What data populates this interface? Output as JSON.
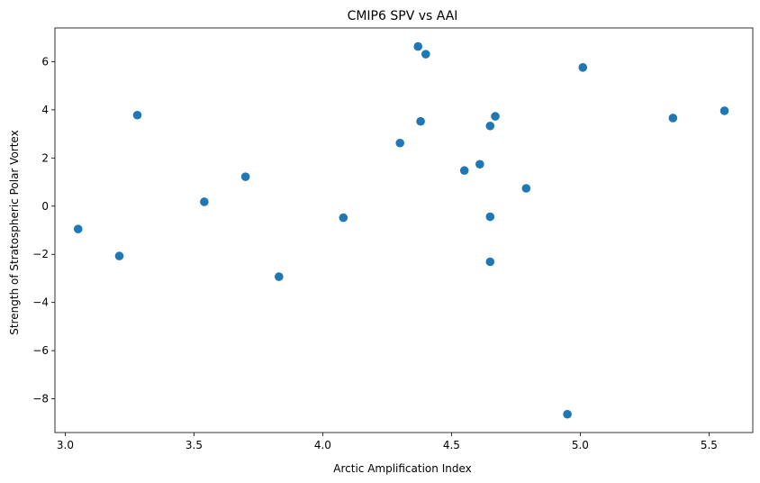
{
  "chart_data": {
    "type": "scatter",
    "title": "CMIP6 SPV vs AAI",
    "xlabel": "Arctic Amplification Index",
    "ylabel": "Strength of Stratospheric Polar Vortex",
    "xlim": [
      2.96,
      5.67
    ],
    "ylim": [
      -9.4,
      7.4
    ],
    "xticks": [
      3.0,
      3.5,
      4.0,
      4.5,
      5.0,
      5.5
    ],
    "xtick_labels": [
      "3.0",
      "3.5",
      "4.0",
      "4.5",
      "5.0",
      "5.5"
    ],
    "yticks": [
      -8,
      -6,
      -4,
      -2,
      0,
      2,
      4,
      6
    ],
    "ytick_labels": [
      "−8",
      "−6",
      "−4",
      "−2",
      "0",
      "2",
      "4",
      "6"
    ],
    "grid": false,
    "legend": "none",
    "series": [
      {
        "color": "#1f77b4",
        "points": [
          {
            "x": 3.05,
            "y": -0.95
          },
          {
            "x": 3.21,
            "y": -2.07
          },
          {
            "x": 3.28,
            "y": 3.78
          },
          {
            "x": 3.54,
            "y": 0.18
          },
          {
            "x": 3.7,
            "y": 1.22
          },
          {
            "x": 3.83,
            "y": -2.93
          },
          {
            "x": 4.08,
            "y": -0.48
          },
          {
            "x": 4.3,
            "y": 2.62
          },
          {
            "x": 4.37,
            "y": 6.63
          },
          {
            "x": 4.38,
            "y": 3.52
          },
          {
            "x": 4.4,
            "y": 6.31
          },
          {
            "x": 4.55,
            "y": 1.48
          },
          {
            "x": 4.61,
            "y": 1.74
          },
          {
            "x": 4.65,
            "y": 3.33
          },
          {
            "x": 4.65,
            "y": -0.44
          },
          {
            "x": 4.65,
            "y": -2.31
          },
          {
            "x": 4.67,
            "y": 3.73
          },
          {
            "x": 4.79,
            "y": 0.74
          },
          {
            "x": 4.95,
            "y": -8.64
          },
          {
            "x": 5.01,
            "y": 5.76
          },
          {
            "x": 5.36,
            "y": 3.66
          },
          {
            "x": 5.56,
            "y": 3.96
          }
        ]
      }
    ]
  }
}
